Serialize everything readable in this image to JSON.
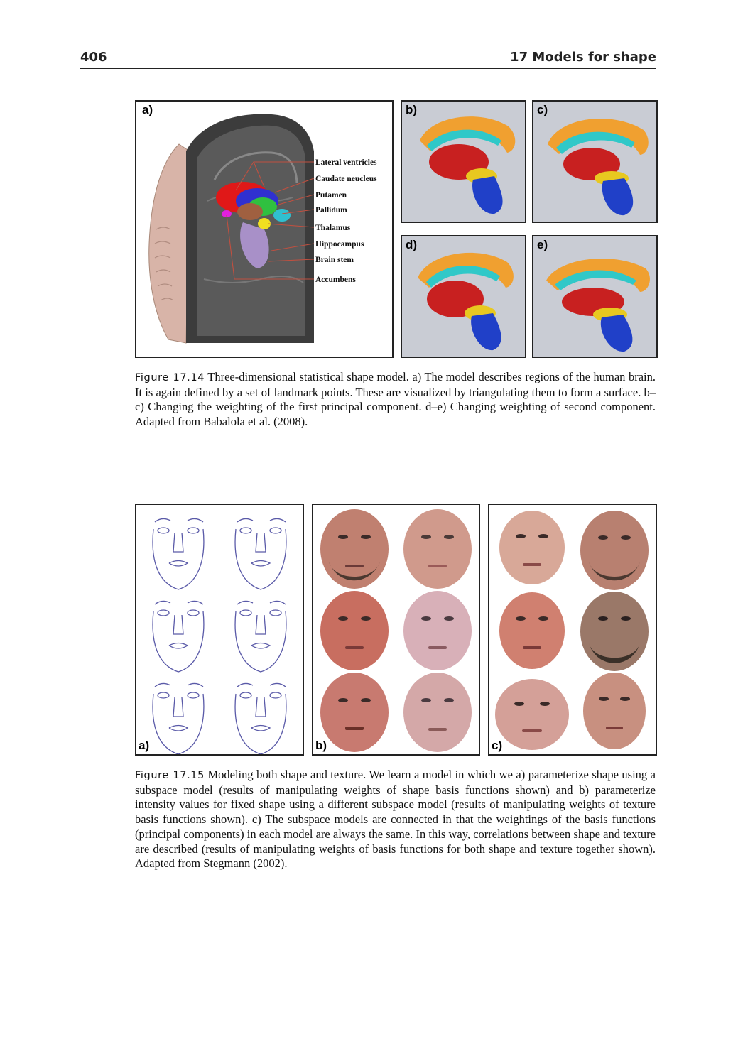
{
  "header": {
    "page_number": "406",
    "chapter": "17 Models for shape"
  },
  "figure_14": {
    "panel_labels": [
      "a)",
      "b)",
      "c)",
      "d)",
      "e)"
    ],
    "structure_labels": [
      "Lateral ventricles",
      "Caudate neucleus",
      "Putamen",
      "Pallidum",
      "Thalamus",
      "Hippocampus",
      "Brain stem",
      "Accumbens"
    ],
    "caption_label": "Figure 17.14",
    "caption_text": " Three-dimensional statistical shape model. a) The model describes regions of the human brain. It is again defined by a set of landmark points. These are visualized by triangulating them to form a surface. b–c) Changing the weighting of the first principal component. d–e) Changing weighting of second component. Adapted from Babalola et al. (2008)."
  },
  "figure_15": {
    "panel_labels": [
      "a)",
      "b)",
      "c)"
    ],
    "caption_label": "Figure 17.15",
    "caption_text": " Modeling both shape and texture. We learn a model in which we a) parameterize shape using a subspace model (results of manipulating weights of shape basis functions shown) and b) parameterize intensity values for fixed shape using a different subspace model (results of manipulating weights of texture basis functions shown). c) The subspace models are connected in that the weightings of the basis functions (principal components) in each model are always the same. In this way, correlations between shape and texture are described (results of manipulating weights of basis functions for both shape and texture together shown). Adapted from Stegmann (2002)."
  }
}
